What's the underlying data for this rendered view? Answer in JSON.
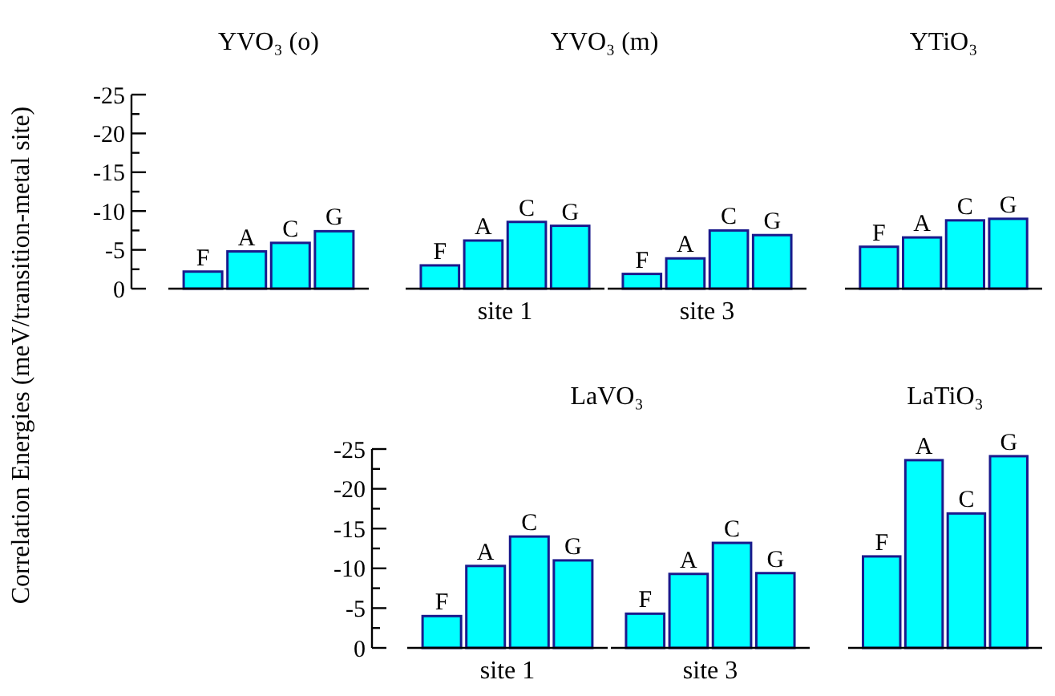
{
  "chart_data": [
    {
      "type": "bar",
      "title": "YVO₃ (o)",
      "ylabel": "Correlation Energies (meV/transition-metal site)",
      "categories": [
        "F",
        "A",
        "C",
        "G"
      ],
      "values": [
        -2.2,
        -4.8,
        -5.9,
        -7.4
      ],
      "color": "#00ffff",
      "ylim": [
        0,
        -25
      ],
      "yticks": [
        0,
        -5,
        -10,
        -15,
        -20,
        -25
      ]
    },
    {
      "type": "bar",
      "title": "YVO₃ (m)",
      "xlabel": "site 1",
      "categories": [
        "F",
        "A",
        "C",
        "G"
      ],
      "values": [
        -3.0,
        -6.2,
        -8.6,
        -8.1
      ],
      "color": "#00ffff",
      "ylim": [
        0,
        -25
      ],
      "tick_labels": "x"
    },
    {
      "type": "bar",
      "xlabel": "site 3",
      "categories": [
        "F",
        "A",
        "C",
        "G"
      ],
      "values": [
        -1.9,
        -3.9,
        -7.5,
        -6.9
      ],
      "color": "#00ffff",
      "ylim": [
        0,
        -25
      ],
      "tick_labels": "x"
    },
    {
      "type": "bar",
      "title": "YTiO₃",
      "categories": [
        "F",
        "A",
        "C",
        "G"
      ],
      "values": [
        -5.4,
        -6.6,
        -8.8,
        -9.0
      ],
      "color": "#00ffff",
      "ylim": [
        0,
        -25
      ],
      "tick_labels": "x"
    },
    {
      "type": "bar",
      "title": "LaVO₃",
      "xlabel": "site 1",
      "categories": [
        "F",
        "A",
        "C",
        "G"
      ],
      "values": [
        -4.0,
        -10.3,
        -14.0,
        -11.0
      ],
      "color": "#00ffff",
      "ylim": [
        0,
        -25
      ],
      "yticks": [
        0,
        -5,
        -10,
        -15,
        -20,
        -25
      ]
    },
    {
      "type": "bar",
      "xlabel": "site 3",
      "categories": [
        "F",
        "A",
        "C",
        "G"
      ],
      "values": [
        -4.3,
        -9.3,
        -13.2,
        -9.4
      ],
      "color": "#00ffff",
      "ylim": [
        0,
        -25
      ],
      "tick_labels": "x"
    },
    {
      "type": "bar",
      "title": "LaTiO₃",
      "categories": [
        "F",
        "A",
        "C",
        "G"
      ],
      "values": [
        -11.5,
        -23.6,
        -16.9,
        -24.1
      ],
      "color": "#00ffff",
      "ylim": [
        0,
        -25
      ],
      "tick_labels": "x"
    }
  ]
}
